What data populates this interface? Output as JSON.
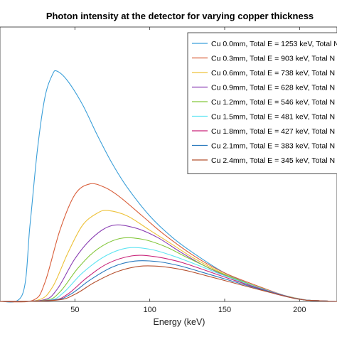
{
  "chart_data": {
    "type": "line",
    "title": "Photon intensity at the detector for varying copper thickness",
    "xlabel": "Energy (keV)",
    "ylabel": "",
    "xlim": [
      0,
      225
    ],
    "ylim": [
      0,
      1
    ],
    "x_ticks": [
      50,
      100,
      150,
      200
    ],
    "x_tick_labels": [
      "50",
      "100",
      "150",
      "200"
    ],
    "grid": false,
    "legend_position": "top-right",
    "series": [
      {
        "name": "Cu 0.0mm, Total E = 1253 keV, Total N",
        "color": "#3b9fd9",
        "x": [
          15,
          20,
          25,
          30,
          35,
          38,
          45,
          55,
          65,
          75,
          85,
          100,
          115,
          130,
          150,
          170,
          190,
          205
        ],
        "y": [
          0.03,
          0.32,
          0.64,
          0.86,
          0.955,
          0.97,
          0.93,
          0.83,
          0.7,
          0.58,
          0.48,
          0.36,
          0.27,
          0.2,
          0.12,
          0.065,
          0.025,
          0.005
        ]
      },
      {
        "name": "Cu 0.3mm, Total E = 903 keV, Total N",
        "color": "#d95f3b",
        "x": [
          22,
          30,
          40,
          50,
          60,
          70,
          80,
          95,
          110,
          130,
          150,
          170,
          190,
          205
        ],
        "y": [
          0.005,
          0.08,
          0.3,
          0.45,
          0.495,
          0.48,
          0.44,
          0.36,
          0.28,
          0.19,
          0.12,
          0.07,
          0.025,
          0.005
        ]
      },
      {
        "name": "Cu 0.6mm, Total E = 738 keV, Total N",
        "color": "#edc23a",
        "x": [
          25,
          35,
          45,
          55,
          65,
          72,
          85,
          100,
          115,
          130,
          150,
          170,
          190,
          205
        ],
        "y": [
          0.005,
          0.06,
          0.2,
          0.32,
          0.372,
          0.383,
          0.36,
          0.3,
          0.24,
          0.18,
          0.115,
          0.065,
          0.025,
          0.005
        ]
      },
      {
        "name": "Cu 0.9mm, Total E = 628 keV, Total N",
        "color": "#8a3fb3",
        "x": [
          28,
          38,
          50,
          62,
          75,
          90,
          105,
          120,
          135,
          150,
          170,
          190,
          205
        ],
        "y": [
          0.005,
          0.05,
          0.18,
          0.27,
          0.32,
          0.31,
          0.27,
          0.21,
          0.155,
          0.11,
          0.06,
          0.022,
          0.005
        ]
      },
      {
        "name": "Cu 1.2mm, Total E = 546 keV, Total N",
        "color": "#84c73c",
        "x": [
          30,
          40,
          52,
          65,
          80,
          95,
          110,
          125,
          140,
          155,
          175,
          192,
          205
        ],
        "y": [
          0.005,
          0.04,
          0.14,
          0.22,
          0.265,
          0.262,
          0.232,
          0.185,
          0.14,
          0.1,
          0.055,
          0.02,
          0.005
        ]
      },
      {
        "name": "Cu 1.5mm, Total E = 481 keV, Total N",
        "color": "#5fe4f2",
        "x": [
          32,
          42,
          55,
          70,
          85,
          100,
          115,
          130,
          145,
          160,
          178,
          194,
          205
        ],
        "y": [
          0.005,
          0.035,
          0.12,
          0.19,
          0.225,
          0.22,
          0.193,
          0.158,
          0.12,
          0.085,
          0.048,
          0.018,
          0.005
        ]
      },
      {
        "name": "Cu 1.8mm, Total E = 427 keV, Total N",
        "color": "#c9257a",
        "x": [
          34,
          45,
          58,
          72,
          88,
          102,
          118,
          133,
          148,
          163,
          180,
          195,
          205
        ],
        "y": [
          0.005,
          0.03,
          0.1,
          0.16,
          0.192,
          0.19,
          0.17,
          0.14,
          0.107,
          0.075,
          0.042,
          0.016,
          0.005
        ]
      },
      {
        "name": "Cu 2.1mm, Total E = 383 keV, Total N",
        "color": "#2878bd",
        "x": [
          35,
          47,
          60,
          75,
          90,
          105,
          120,
          135,
          150,
          165,
          182,
          196,
          205
        ],
        "y": [
          0.005,
          0.03,
          0.09,
          0.145,
          0.17,
          0.168,
          0.15,
          0.123,
          0.095,
          0.067,
          0.037,
          0.014,
          0.005
        ]
      },
      {
        "name": "Cu 2.4mm, Total E = 345 keV, Total N",
        "color": "#b5502e",
        "x": [
          37,
          50,
          63,
          78,
          93,
          108,
          123,
          138,
          153,
          168,
          184,
          197,
          205
        ],
        "y": [
          0.005,
          0.03,
          0.08,
          0.125,
          0.148,
          0.147,
          0.132,
          0.108,
          0.083,
          0.058,
          0.032,
          0.012,
          0.005
        ]
      }
    ]
  }
}
